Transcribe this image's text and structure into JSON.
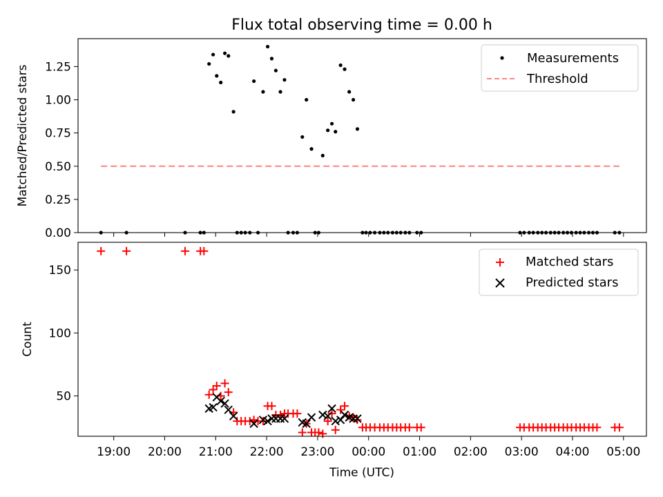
{
  "figure": {
    "title": "Flux total observing time = 0.00 h",
    "xlabel": "Time (UTC)"
  },
  "chart_data": [
    {
      "type": "scatter",
      "ylabel": "Matched/Predicted stars",
      "ylim": [
        0,
        1.46
      ],
      "yticks": [
        "0.00",
        "0.25",
        "0.50",
        "0.75",
        "1.00",
        "1.25"
      ],
      "ytick_values": [
        0,
        0.25,
        0.5,
        0.75,
        1.0,
        1.25
      ],
      "legend_position": "top-right",
      "legend": [
        "Measurements",
        "Threshold"
      ],
      "series": [
        {
          "name": "Measurements",
          "color": "#000000",
          "marker": "dot",
          "points": [
            [
              18.75,
              0
            ],
            [
              19.25,
              0
            ],
            [
              20.4,
              0
            ],
            [
              20.7,
              0
            ],
            [
              20.77,
              0
            ],
            [
              20.87,
              1.27
            ],
            [
              20.95,
              1.34
            ],
            [
              21.02,
              1.18
            ],
            [
              21.1,
              1.13
            ],
            [
              21.18,
              1.35
            ],
            [
              21.25,
              1.33
            ],
            [
              21.35,
              0.91
            ],
            [
              21.42,
              0
            ],
            [
              21.5,
              0
            ],
            [
              21.58,
              0
            ],
            [
              21.67,
              0
            ],
            [
              21.75,
              1.14
            ],
            [
              21.83,
              0
            ],
            [
              21.93,
              1.06
            ],
            [
              22.02,
              1.4
            ],
            [
              22.1,
              1.31
            ],
            [
              22.18,
              1.22
            ],
            [
              22.27,
              1.06
            ],
            [
              22.35,
              1.15
            ],
            [
              22.42,
              0
            ],
            [
              22.52,
              0
            ],
            [
              22.6,
              0
            ],
            [
              22.7,
              0.72
            ],
            [
              22.78,
              1.0
            ],
            [
              22.88,
              0.63
            ],
            [
              22.95,
              0
            ],
            [
              23.02,
              0
            ],
            [
              23.1,
              0.58
            ],
            [
              23.2,
              0.77
            ],
            [
              23.28,
              0.82
            ],
            [
              23.35,
              0.76
            ],
            [
              23.45,
              1.26
            ],
            [
              23.53,
              1.23
            ],
            [
              23.62,
              1.06
            ],
            [
              23.7,
              1.0
            ],
            [
              23.78,
              0.78
            ],
            [
              23.88,
              0
            ],
            [
              23.95,
              0
            ],
            [
              24.03,
              0
            ],
            [
              24.12,
              0
            ],
            [
              24.22,
              0
            ],
            [
              24.3,
              0
            ],
            [
              24.38,
              0
            ],
            [
              24.47,
              0
            ],
            [
              24.55,
              0
            ],
            [
              24.63,
              0
            ],
            [
              24.72,
              0
            ],
            [
              24.8,
              0
            ],
            [
              24.95,
              0
            ],
            [
              25.03,
              0
            ],
            [
              26.97,
              0
            ],
            [
              27.05,
              0
            ],
            [
              27.15,
              0
            ],
            [
              27.23,
              0
            ],
            [
              27.32,
              0
            ],
            [
              27.4,
              0
            ],
            [
              27.48,
              0
            ],
            [
              27.57,
              0
            ],
            [
              27.65,
              0
            ],
            [
              27.73,
              0
            ],
            [
              27.82,
              0
            ],
            [
              27.9,
              0
            ],
            [
              27.98,
              0
            ],
            [
              28.07,
              0
            ],
            [
              28.15,
              0
            ],
            [
              28.23,
              0
            ],
            [
              28.32,
              0
            ],
            [
              28.4,
              0
            ],
            [
              28.48,
              0
            ],
            [
              28.83,
              0
            ],
            [
              28.92,
              0
            ]
          ]
        },
        {
          "name": "Threshold",
          "color": "#ff7f7f",
          "line_style": "dashed",
          "points": [
            [
              18.75,
              0.5
            ],
            [
              28.92,
              0.5
            ]
          ]
        }
      ]
    },
    {
      "type": "scatter",
      "ylabel": "Count",
      "ylim": [
        18,
        172
      ],
      "yticks": [
        "50",
        "100",
        "150"
      ],
      "ytick_values": [
        50,
        100,
        150
      ],
      "legend_position": "top-right",
      "legend": [
        "Matched stars",
        "Predicted stars"
      ],
      "xticks": [
        "19:00",
        "20:00",
        "21:00",
        "22:00",
        "23:00",
        "00:00",
        "01:00",
        "02:00",
        "03:00",
        "04:00",
        "05:00"
      ],
      "xtick_values": [
        19,
        20,
        21,
        22,
        23,
        24,
        25,
        26,
        27,
        28,
        29
      ],
      "xlim": [
        18.3,
        29.45
      ],
      "series": [
        {
          "name": "Matched stars",
          "color": "#ff0000",
          "marker": "plus",
          "points": [
            [
              18.75,
              165
            ],
            [
              19.25,
              165
            ],
            [
              20.4,
              165
            ],
            [
              20.7,
              165
            ],
            [
              20.77,
              165
            ],
            [
              20.87,
              51
            ],
            [
              20.95,
              55
            ],
            [
              21.02,
              58
            ],
            [
              21.1,
              50
            ],
            [
              21.18,
              60
            ],
            [
              21.25,
              53
            ],
            [
              21.35,
              37
            ],
            [
              21.42,
              30
            ],
            [
              21.5,
              30
            ],
            [
              21.58,
              30
            ],
            [
              21.67,
              30
            ],
            [
              21.75,
              31
            ],
            [
              21.83,
              30
            ],
            [
              21.93,
              30
            ],
            [
              22.02,
              42
            ],
            [
              22.1,
              42
            ],
            [
              22.18,
              35
            ],
            [
              22.27,
              35
            ],
            [
              22.35,
              36
            ],
            [
              22.42,
              36
            ],
            [
              22.52,
              36
            ],
            [
              22.6,
              36
            ],
            [
              22.7,
              21
            ],
            [
              22.78,
              28
            ],
            [
              22.88,
              21
            ],
            [
              22.95,
              21
            ],
            [
              23.02,
              21
            ],
            [
              23.1,
              20
            ],
            [
              23.2,
              30
            ],
            [
              23.28,
              36
            ],
            [
              23.35,
              23
            ],
            [
              23.45,
              39
            ],
            [
              23.53,
              42
            ],
            [
              23.62,
              34
            ],
            [
              23.7,
              33
            ],
            [
              23.78,
              31
            ],
            [
              23.88,
              25
            ],
            [
              23.95,
              25
            ],
            [
              24.03,
              25
            ],
            [
              24.12,
              25
            ],
            [
              24.22,
              25
            ],
            [
              24.3,
              25
            ],
            [
              24.38,
              25
            ],
            [
              24.47,
              25
            ],
            [
              24.55,
              25
            ],
            [
              24.63,
              25
            ],
            [
              24.72,
              25
            ],
            [
              24.8,
              25
            ],
            [
              24.95,
              25
            ],
            [
              25.03,
              25
            ],
            [
              26.97,
              25
            ],
            [
              27.05,
              25
            ],
            [
              27.15,
              25
            ],
            [
              27.23,
              25
            ],
            [
              27.32,
              25
            ],
            [
              27.4,
              25
            ],
            [
              27.48,
              25
            ],
            [
              27.57,
              25
            ],
            [
              27.65,
              25
            ],
            [
              27.73,
              25
            ],
            [
              27.82,
              25
            ],
            [
              27.9,
              25
            ],
            [
              27.98,
              25
            ],
            [
              28.07,
              25
            ],
            [
              28.15,
              25
            ],
            [
              28.23,
              25
            ],
            [
              28.32,
              25
            ],
            [
              28.4,
              25
            ],
            [
              28.48,
              25
            ],
            [
              28.83,
              25
            ],
            [
              28.92,
              25
            ]
          ]
        },
        {
          "name": "Predicted stars",
          "color": "#000000",
          "marker": "x",
          "points": [
            [
              20.87,
              40
            ],
            [
              20.95,
              41
            ],
            [
              21.02,
              49
            ],
            [
              21.1,
              46
            ],
            [
              21.18,
              44
            ],
            [
              21.25,
              39
            ],
            [
              21.35,
              34
            ],
            [
              21.75,
              28
            ],
            [
              21.93,
              31
            ],
            [
              22.02,
              30
            ],
            [
              22.1,
              32
            ],
            [
              22.18,
              32
            ],
            [
              22.27,
              32
            ],
            [
              22.35,
              32
            ],
            [
              22.7,
              29
            ],
            [
              22.78,
              28
            ],
            [
              22.88,
              33
            ],
            [
              23.1,
              35
            ],
            [
              23.2,
              34
            ],
            [
              23.28,
              40
            ],
            [
              23.35,
              30
            ],
            [
              23.45,
              31
            ],
            [
              23.53,
              35
            ],
            [
              23.62,
              33
            ],
            [
              23.7,
              32
            ],
            [
              23.78,
              32
            ]
          ]
        }
      ]
    }
  ]
}
